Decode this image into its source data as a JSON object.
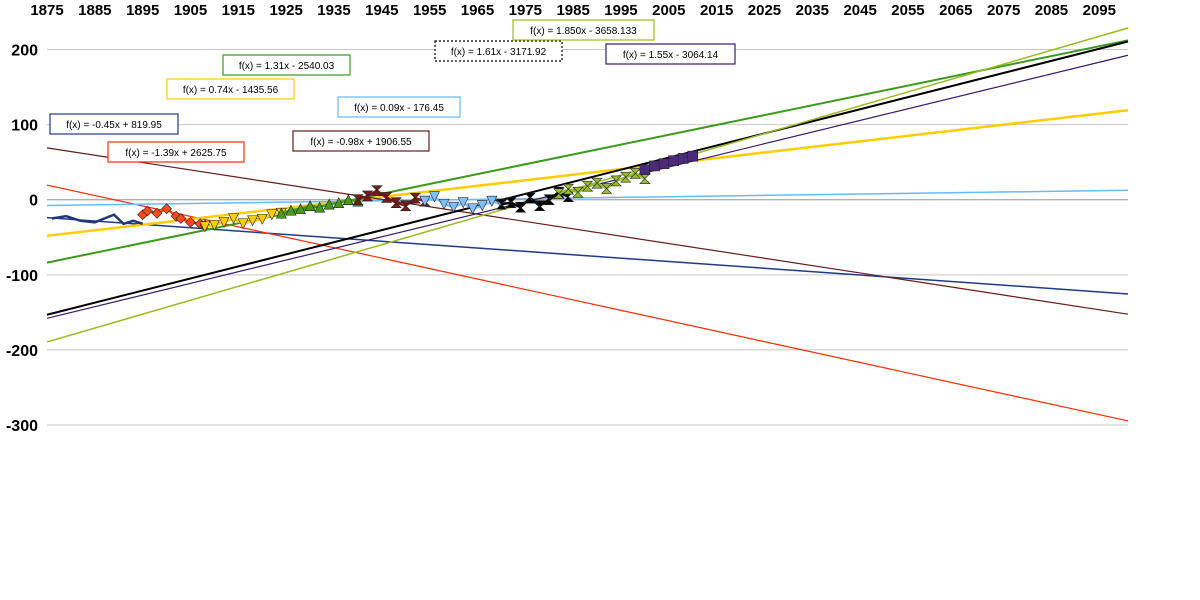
{
  "chart_data": {
    "type": "scatter",
    "title": "",
    "xlabel": "",
    "ylabel": "",
    "xlim": [
      1875,
      2101
    ],
    "ylim": [
      -300,
      250
    ],
    "grid": true,
    "x_ticks": [
      "1875",
      "1885",
      "1895",
      "1905",
      "1915",
      "1925",
      "1935",
      "1945",
      "1955",
      "1965",
      "1975",
      "1985",
      "1995",
      "2005",
      "2015",
      "2025",
      "2035",
      "2045",
      "2055",
      "2065",
      "2075",
      "2085",
      "2095"
    ],
    "y_ticks": [
      "200",
      "100",
      "0",
      "-100",
      "-200",
      "-300"
    ],
    "series": [
      {
        "color": "#1f3a7a",
        "marker": "line",
        "x": [
          1876,
          1879,
          1882,
          1885,
          1887,
          1889,
          1891,
          1893,
          1895
        ],
        "y": [
          -25,
          -22,
          -28,
          -30,
          -25,
          -20,
          -32,
          -28,
          -32
        ]
      },
      {
        "color": "#ff4a1a",
        "marker": "diamond",
        "x": [
          1895,
          1896,
          1898,
          1900,
          1902,
          1903,
          1905,
          1907,
          1908
        ],
        "y": [
          -20,
          -15,
          -18,
          -12,
          -22,
          -25,
          -30,
          -32,
          -34
        ]
      },
      {
        "color": "#ffcc00",
        "marker": "triangle-down",
        "x": [
          1908,
          1910,
          1912,
          1914,
          1916,
          1918,
          1920,
          1922,
          1924
        ],
        "y": [
          -36,
          -34,
          -30,
          -25,
          -32,
          -28,
          -26,
          -20,
          -18
        ]
      },
      {
        "color": "#4a9a1a",
        "marker": "triangle-up",
        "x": [
          1924,
          1926,
          1928,
          1930,
          1932,
          1934,
          1936,
          1938,
          1940
        ],
        "y": [
          -18,
          -14,
          -12,
          -8,
          -10,
          -6,
          -4,
          0,
          -2
        ]
      },
      {
        "color": "#7a1a1a",
        "marker": "bowtie",
        "x": [
          1940,
          1942,
          1944,
          1946,
          1948,
          1950,
          1952,
          1954
        ],
        "y": [
          0,
          5,
          12,
          3,
          -4,
          -8,
          2,
          -2
        ]
      },
      {
        "color": "#80c0ff",
        "marker": "triangle-down",
        "x": [
          1954,
          1956,
          1958,
          1960,
          1962,
          1964,
          1966,
          1968,
          1970
        ],
        "y": [
          -2,
          4,
          -6,
          -10,
          -4,
          -12,
          -8,
          -2,
          -6
        ]
      },
      {
        "color": "#000000",
        "marker": "bowtie",
        "x": [
          1970,
          1972,
          1974,
          1976,
          1978,
          1980,
          1982,
          1984
        ],
        "y": [
          -6,
          -4,
          -10,
          2,
          -8,
          0,
          10,
          4
        ]
      },
      {
        "color": "#99bb33",
        "marker": "bowtie",
        "x": [
          1982,
          1984,
          1986,
          1988,
          1990,
          1992,
          1994,
          1996,
          1998,
          2000
        ],
        "y": [
          8,
          14,
          10,
          18,
          22,
          15,
          25,
          30,
          35,
          28
        ]
      },
      {
        "color": "#4b2a7a",
        "marker": "square",
        "x": [
          2000,
          2002,
          2004,
          2006,
          2008,
          2010
        ],
        "y": [
          40,
          45,
          48,
          52,
          55,
          58
        ]
      }
    ],
    "trendlines": [
      {
        "label": "f(x) = -0.45x + 819.95",
        "slope": -0.45,
        "intercept": 819.95,
        "color": "#1f3a8a",
        "width": 1.5
      },
      {
        "label": "f(x) = -1.39x + 2625.75",
        "slope": -1.39,
        "intercept": 2625.75,
        "color": "#ff2a00",
        "width": 1.2
      },
      {
        "label": "f(x) = 0.74x - 1435.56",
        "slope": 0.74,
        "intercept": -1435.56,
        "color": "#ffcc00",
        "width": 2.5
      },
      {
        "label": "f(x) = 1.31x - 2540.03",
        "slope": 1.31,
        "intercept": -2540.03,
        "color": "#3a9a1a",
        "width": 2
      },
      {
        "label": "f(x) = 0.09x - 176.45",
        "slope": 0.09,
        "intercept": -176.45,
        "color": "#66bbff",
        "width": 1.5
      },
      {
        "label": "f(x) = -0.98x + 1906.55",
        "slope": -0.98,
        "intercept": 1906.55,
        "color": "#6a1a1a",
        "width": 1.2
      },
      {
        "label": "f(x) = 1.61x - 3171.92",
        "slope": 1.61,
        "intercept": -3171.92,
        "color": "#000000",
        "width": 2
      },
      {
        "label": "f(x) = 1.850x - 3658.133",
        "slope": 1.85,
        "intercept": -3658.133,
        "color": "#99bb22",
        "width": 1.5
      },
      {
        "label": "f(x) = 1.55x - 3064.14",
        "slope": 1.55,
        "intercept": -3064.14,
        "color": "#3a1a6a",
        "width": 1.2
      }
    ]
  }
}
